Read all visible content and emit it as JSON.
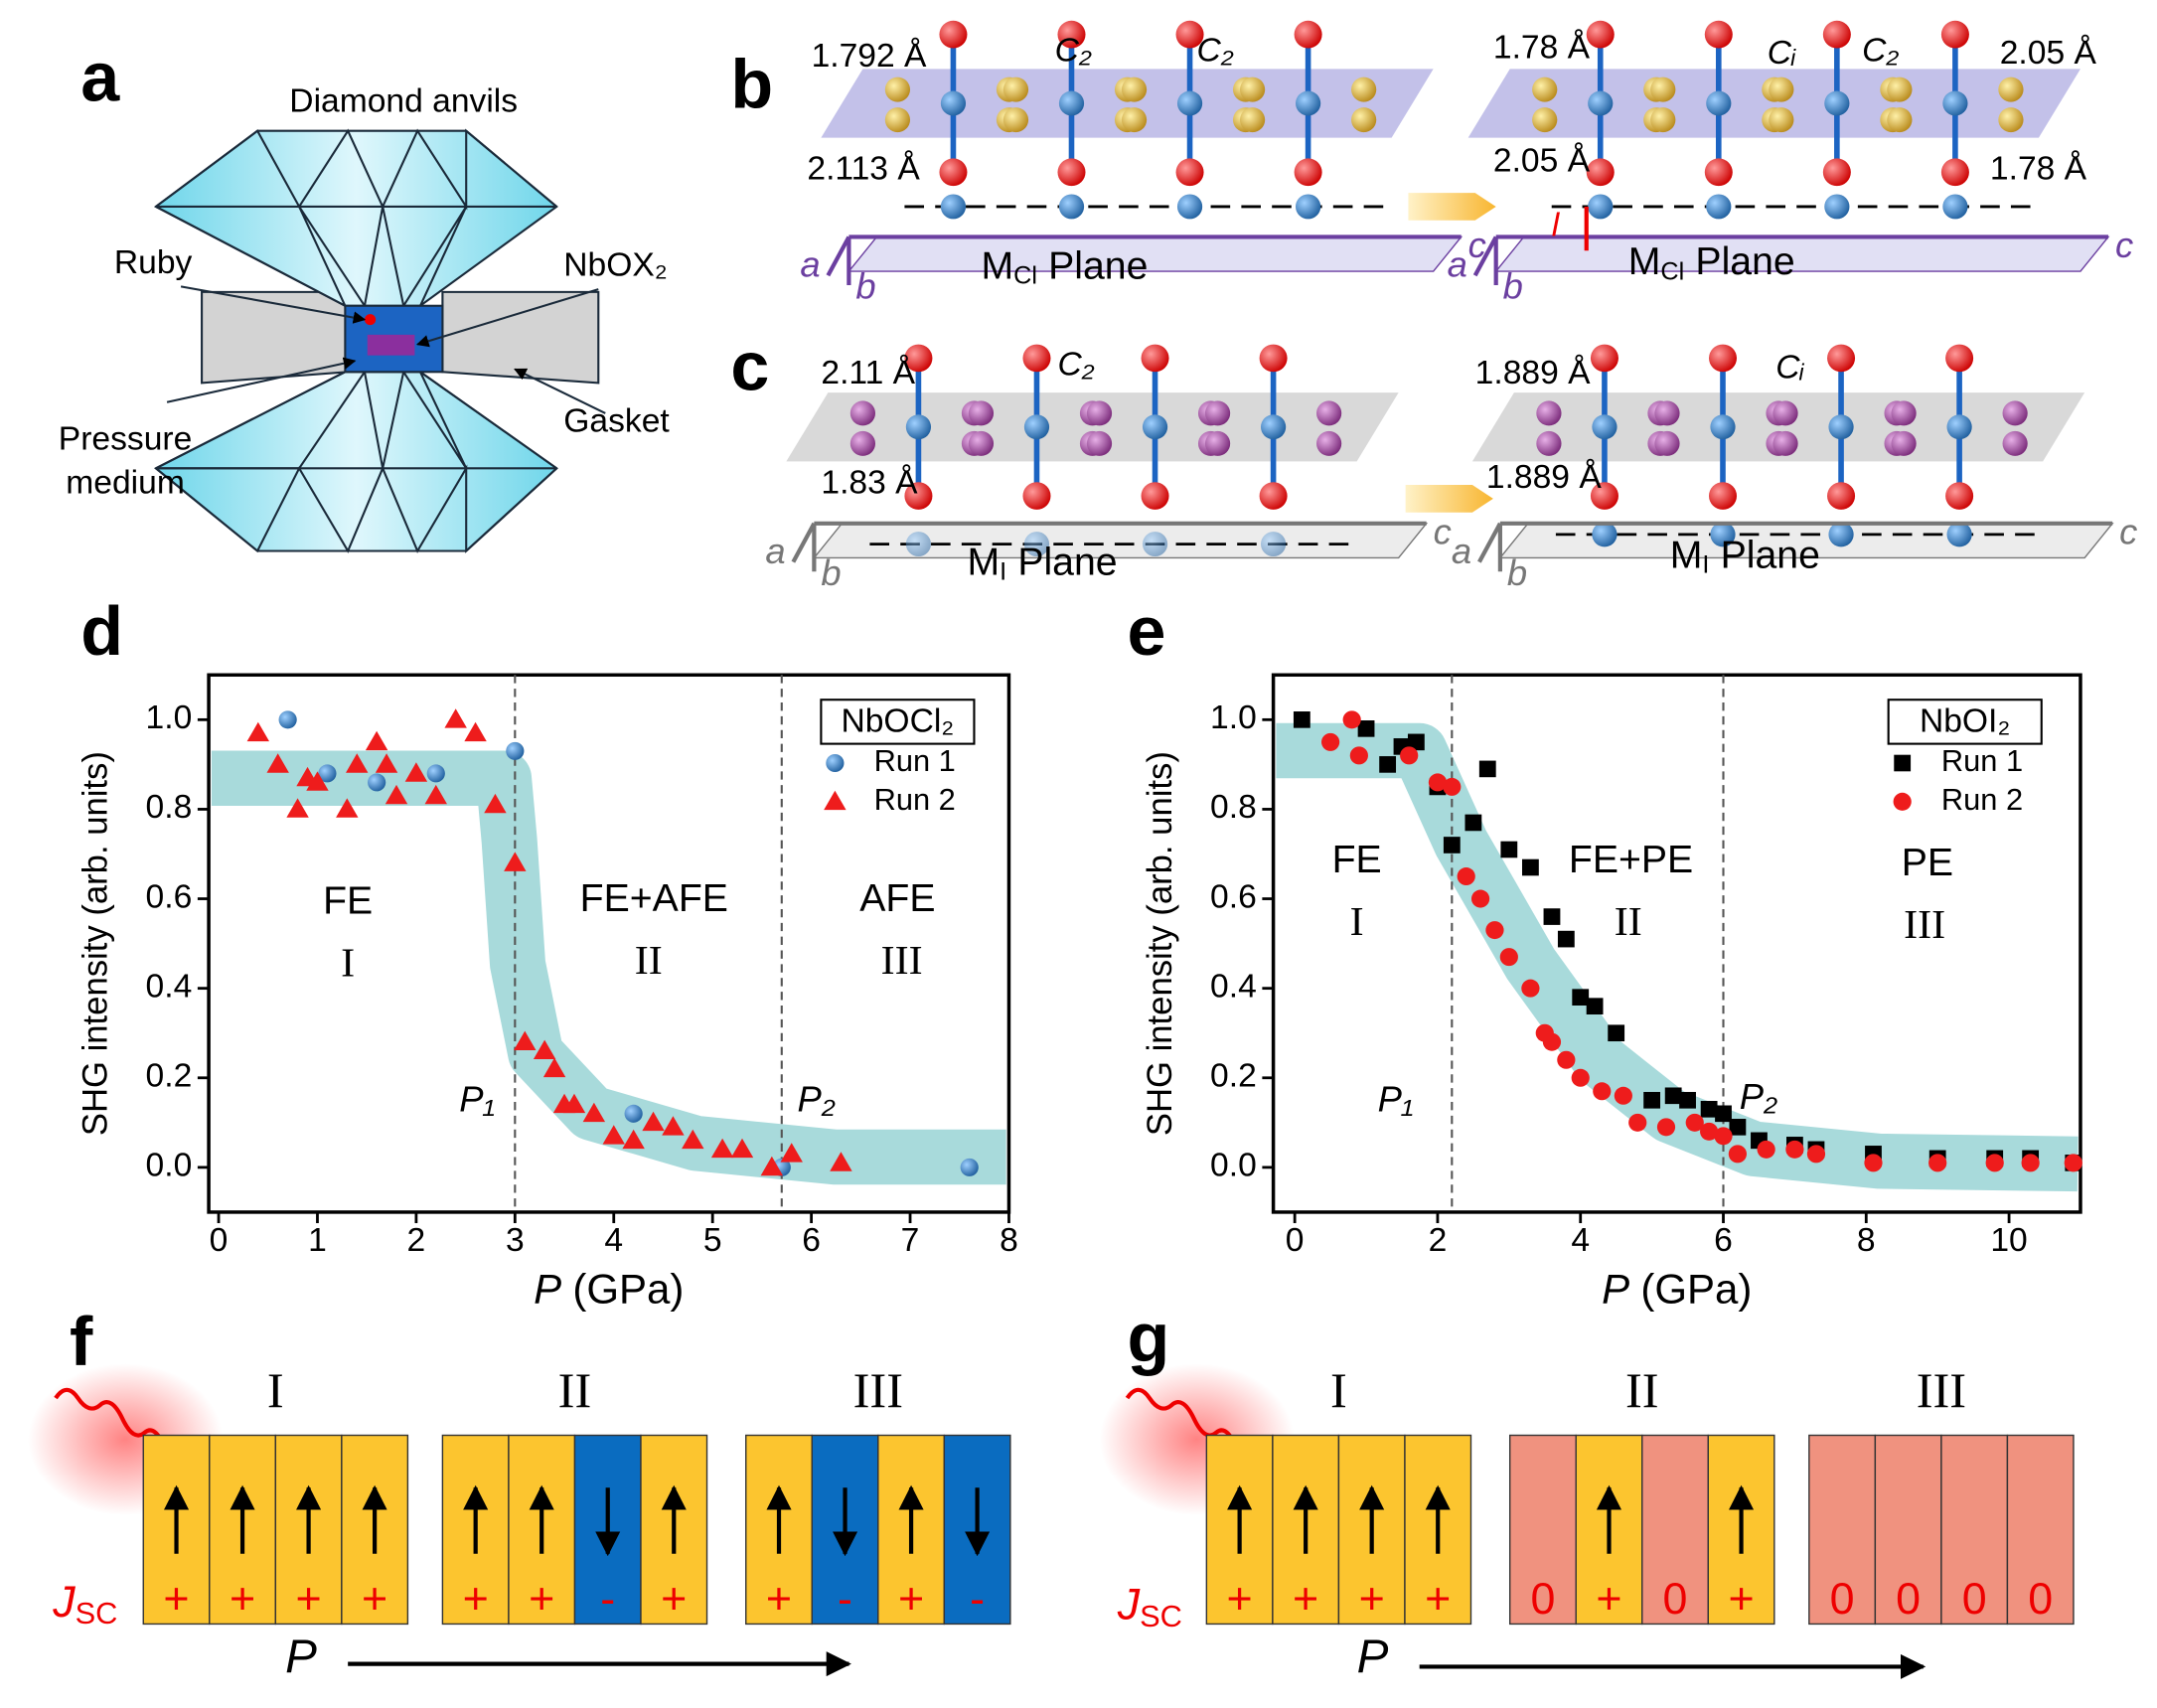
{
  "panel_letters": [
    "a",
    "b",
    "c",
    "d",
    "e",
    "f",
    "g"
  ],
  "panel_a": {
    "anvils": "Diamond anvils",
    "ruby": "Ruby",
    "sample": "NbOX₂",
    "medium": [
      "Pressure",
      "medium"
    ],
    "gasket": "Gasket"
  },
  "axes_letters": [
    "a",
    "b",
    "c"
  ],
  "panel_b": {
    "left": {
      "bonds": [
        "1.792 Å",
        "2.113 Å"
      ],
      "symmetry": [
        "C₂",
        "C₂"
      ]
    },
    "right": {
      "bonds": [
        "1.78 Å",
        "2.05 Å",
        "2.05 Å",
        "1.78 Å"
      ],
      "symmetry": [
        "Cᵢ",
        "C₂"
      ],
      "shift": "l"
    },
    "plane": {
      "main": "M",
      "sub": "Cl",
      "rest": "Plane"
    }
  },
  "panel_c": {
    "left": {
      "bonds": [
        "2.11 Å",
        "1.83 Å"
      ],
      "symmetry": [
        "C₂"
      ]
    },
    "right": {
      "bonds": [
        "1.889 Å",
        "1.889 Å"
      ],
      "symmetry": [
        "Cᵢ"
      ]
    },
    "plane": {
      "main": "M",
      "sub": "I",
      "rest": "Plane"
    }
  },
  "chart_data": [
    {
      "type": "scatter",
      "legend_title": "NbOCl₂",
      "ylabel": "SHG intensity (arb. units)",
      "xlabel_var": "P",
      "xlabel": "(GPa)",
      "xlim": [
        -0.1,
        8
      ],
      "xticks": [
        0,
        1,
        2,
        3,
        4,
        5,
        6,
        7,
        8
      ],
      "ylim": [
        -0.1,
        1.1
      ],
      "yticks": [
        {
          "value": 0,
          "label": "0.0"
        },
        0.2,
        0.4,
        0.6,
        0.8,
        {
          "value": 1,
          "label": "1.0"
        }
      ],
      "vlines": [
        3.0,
        5.7
      ],
      "annotations": [
        "FE",
        "I",
        "FE+AFE",
        "II",
        "AFE",
        "III",
        "P₁",
        "P₂"
      ],
      "series": [
        {
          "name": "Run 1",
          "color": "#1f6fb5",
          "marker": "sphere",
          "x": [
            0.7,
            1.1,
            1.6,
            2.2,
            3.0,
            4.2,
            5.7,
            7.6
          ],
          "values": [
            1.0,
            0.88,
            0.86,
            0.88,
            0.93,
            0.12,
            0.0,
            0.0
          ]
        },
        {
          "name": "Run 2",
          "color": "#ee1c1c",
          "marker": "triangle",
          "x": [
            0.4,
            0.6,
            0.8,
            0.9,
            1.0,
            1.3,
            1.4,
            1.6,
            1.7,
            1.8,
            2.0,
            2.2,
            2.4,
            2.6,
            2.8,
            3.0,
            3.1,
            3.3,
            3.4,
            3.5,
            3.6,
            3.8,
            4.0,
            4.2,
            4.4,
            4.6,
            4.8,
            5.1,
            5.3,
            5.6,
            5.8,
            6.3
          ],
          "values": [
            0.97,
            0.9,
            0.8,
            0.87,
            0.86,
            0.8,
            0.9,
            0.95,
            0.9,
            0.83,
            0.88,
            0.83,
            1.0,
            0.97,
            0.81,
            0.68,
            0.28,
            0.26,
            0.22,
            0.14,
            0.14,
            0.12,
            0.07,
            0.06,
            0.1,
            0.09,
            0.06,
            0.04,
            0.04,
            0.0,
            0.03,
            0.01
          ]
        }
      ]
    },
    {
      "type": "scatter",
      "legend_title": "NbOI₂",
      "ylabel": "SHG intensity (arb. units)",
      "xlabel_var": "P",
      "xlabel": "(GPa)",
      "xlim": [
        -0.3,
        11
      ],
      "xticks": [
        0,
        2,
        4,
        6,
        8,
        10
      ],
      "ylim": [
        -0.1,
        1.1
      ],
      "yticks": [
        {
          "value": 0,
          "label": "0.0"
        },
        0.2,
        0.4,
        0.6,
        0.8,
        {
          "value": 1,
          "label": "1.0"
        }
      ],
      "vlines": [
        2.2,
        6.0
      ],
      "annotations": [
        "FE",
        "I",
        "FE+PE",
        "II",
        "PE",
        "III",
        "P₁",
        "P₂"
      ],
      "series": [
        {
          "name": "Run 1",
          "color": "#000000",
          "marker": "square",
          "x": [
            0.1,
            1.0,
            1.3,
            1.5,
            1.7,
            2.0,
            2.2,
            2.5,
            2.7,
            3.0,
            3.3,
            3.6,
            3.8,
            4.0,
            4.2,
            4.5,
            5.0,
            5.3,
            5.5,
            5.8,
            6.0,
            6.2,
            6.5,
            7.0,
            7.3,
            8.1,
            9.0,
            9.8,
            10.3,
            10.9
          ],
          "values": [
            1.0,
            0.98,
            0.9,
            0.94,
            0.95,
            0.85,
            0.72,
            0.77,
            0.89,
            0.71,
            0.67,
            0.56,
            0.51,
            0.38,
            0.36,
            0.3,
            0.15,
            0.16,
            0.15,
            0.13,
            0.12,
            0.09,
            0.06,
            0.05,
            0.04,
            0.03,
            0.02,
            0.02,
            0.02,
            0.01
          ]
        },
        {
          "name": "Run 2",
          "color": "#ee1c1c",
          "marker": "circle",
          "x": [
            0.5,
            0.8,
            0.9,
            1.6,
            2.0,
            2.2,
            2.4,
            2.6,
            2.8,
            3.0,
            3.3,
            3.5,
            3.6,
            3.8,
            4.0,
            4.3,
            4.6,
            4.8,
            5.2,
            5.6,
            5.8,
            6.0,
            6.2,
            6.6,
            7.0,
            7.3,
            8.1,
            9.0,
            9.8,
            10.3,
            10.9
          ],
          "values": [
            0.95,
            1.0,
            0.92,
            0.92,
            0.86,
            0.85,
            0.65,
            0.6,
            0.53,
            0.47,
            0.4,
            0.3,
            0.28,
            0.24,
            0.2,
            0.17,
            0.16,
            0.1,
            0.09,
            0.1,
            0.08,
            0.07,
            0.03,
            0.04,
            0.04,
            0.03,
            0.01,
            0.01,
            0.01,
            0.01,
            0.01
          ]
        }
      ]
    }
  ],
  "panel_f": {
    "current": "J",
    "current_sub": "SC",
    "pressure": "P",
    "phases": [
      {
        "label": "I",
        "cells": [
          {
            "sign": "+",
            "color": "#fcc52f",
            "arrow": "up"
          },
          {
            "sign": "+",
            "color": "#fcc52f",
            "arrow": "up"
          },
          {
            "sign": "+",
            "color": "#fcc52f",
            "arrow": "up"
          },
          {
            "sign": "+",
            "color": "#fcc52f",
            "arrow": "up"
          }
        ]
      },
      {
        "label": "II",
        "cells": [
          {
            "sign": "+",
            "color": "#fcc52f",
            "arrow": "up"
          },
          {
            "sign": "+",
            "color": "#fcc52f",
            "arrow": "up"
          },
          {
            "sign": "-",
            "color": "#0a6cc0",
            "arrow": "down"
          },
          {
            "sign": "+",
            "color": "#fcc52f",
            "arrow": "up"
          }
        ]
      },
      {
        "label": "III",
        "cells": [
          {
            "sign": "+",
            "color": "#fcc52f",
            "arrow": "up"
          },
          {
            "sign": "-",
            "color": "#0a6cc0",
            "arrow": "down"
          },
          {
            "sign": "+",
            "color": "#fcc52f",
            "arrow": "up"
          },
          {
            "sign": "-",
            "color": "#0a6cc0",
            "arrow": "down"
          }
        ]
      }
    ]
  },
  "panel_g": {
    "current": "J",
    "current_sub": "SC",
    "pressure": "P",
    "phases": [
      {
        "label": "I",
        "cells": [
          {
            "sign": "+",
            "color": "#fcc52f",
            "arrow": "up"
          },
          {
            "sign": "+",
            "color": "#fcc52f",
            "arrow": "up"
          },
          {
            "sign": "+",
            "color": "#fcc52f",
            "arrow": "up"
          },
          {
            "sign": "+",
            "color": "#fcc52f",
            "arrow": "up"
          }
        ]
      },
      {
        "label": "II",
        "cells": [
          {
            "sign": "0",
            "color": "#f0927f",
            "arrow": "none"
          },
          {
            "sign": "+",
            "color": "#fcc52f",
            "arrow": "up"
          },
          {
            "sign": "0",
            "color": "#f0927f",
            "arrow": "none"
          },
          {
            "sign": "+",
            "color": "#fcc52f",
            "arrow": "up"
          }
        ]
      },
      {
        "label": "III",
        "cells": [
          {
            "sign": "0",
            "color": "#f0927f",
            "arrow": "none"
          },
          {
            "sign": "0",
            "color": "#f0927f",
            "arrow": "none"
          },
          {
            "sign": "0",
            "color": "#f0927f",
            "arrow": "none"
          },
          {
            "sign": "0",
            "color": "#f0927f",
            "arrow": "none"
          }
        ]
      }
    ]
  }
}
